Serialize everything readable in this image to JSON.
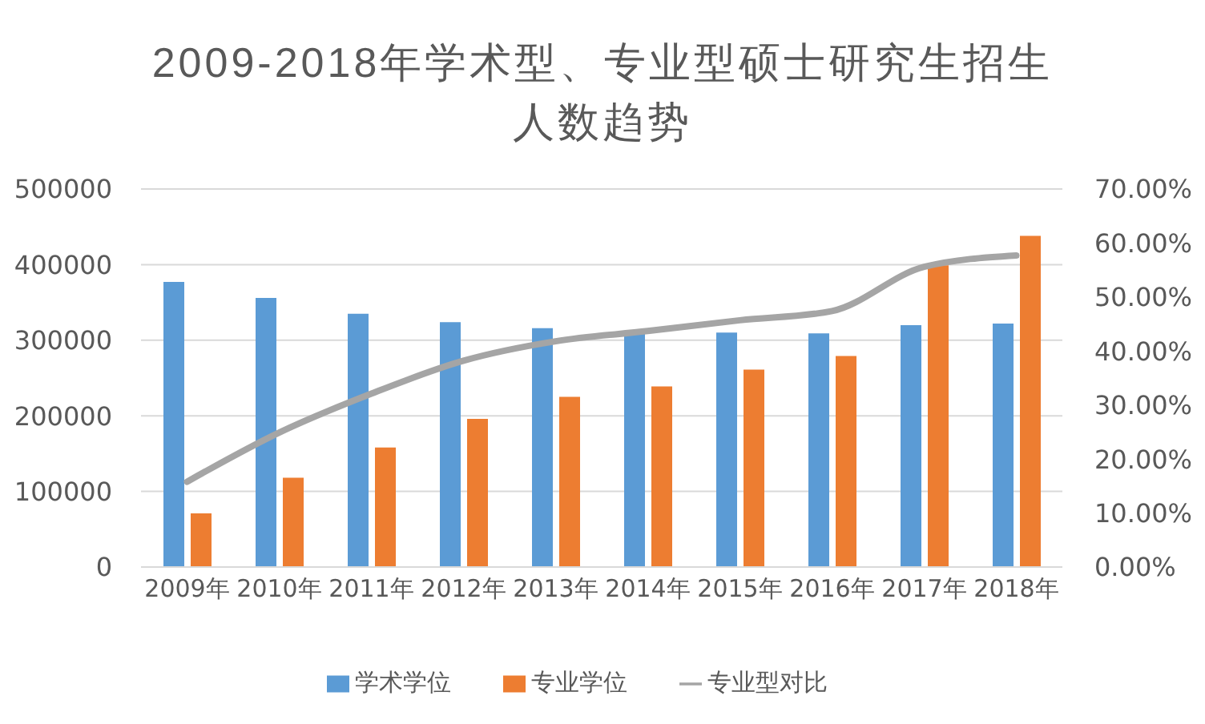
{
  "chart_data": {
    "type": "bar",
    "title": "2009-2018年学术型、专业型硕士研究生招生人数趋势",
    "categories": [
      "2009年",
      "2010年",
      "2011年",
      "2012年",
      "2013年",
      "2014年",
      "2015年",
      "2016年",
      "2017年",
      "2018年"
    ],
    "series": [
      {
        "name": "学术学位",
        "color": "#5b9bd5",
        "values": [
          377000,
          356000,
          335000,
          324000,
          316000,
          311000,
          310000,
          309000,
          320000,
          322000
        ]
      },
      {
        "name": "专业学位",
        "color": "#ed7d31",
        "values": [
          71000,
          118000,
          158000,
          196000,
          225000,
          239000,
          261000,
          279000,
          399000,
          438000
        ]
      },
      {
        "name": "专业型对比",
        "type": "line",
        "axis": "y2",
        "color": "#a5a5a5",
        "values": [
          15.8,
          24.9,
          32.1,
          38.2,
          41.8,
          43.7,
          45.7,
          47.4,
          55.6,
          57.7
        ]
      }
    ],
    "ylim": [
      0,
      500000
    ],
    "yticks": [
      0,
      100000,
      200000,
      300000,
      400000,
      500000
    ],
    "y2lim": [
      0,
      70
    ],
    "y2ticks": [
      {
        "value": 0,
        "label": "0.00%"
      },
      {
        "value": 10,
        "label": "10.00%"
      },
      {
        "value": 20,
        "label": "20.00%"
      },
      {
        "value": 30,
        "label": "30.00%"
      },
      {
        "value": 40,
        "label": "40.00%"
      },
      {
        "value": 50,
        "label": "50.00%"
      },
      {
        "value": 60,
        "label": "60.00%"
      },
      {
        "value": 70,
        "label": "70.00%"
      }
    ],
    "grid": "y",
    "legend": "bottom"
  }
}
